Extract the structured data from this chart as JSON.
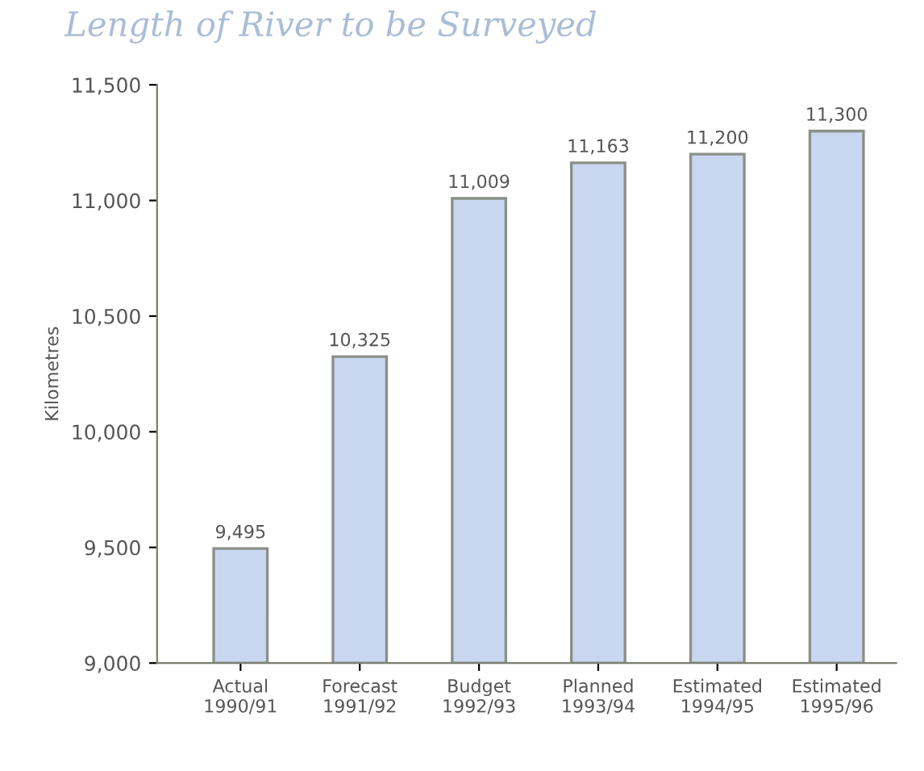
{
  "chart_data": {
    "type": "bar",
    "title": "Length of River to be Surveyed",
    "ylabel": "Kilometres",
    "categories": [
      "Actual\n1990/91",
      "Forecast\n1991/92",
      "Budget\n1992/93",
      "Planned\n1993/94",
      "Estimated\n1994/95",
      "Estimated\n1995/96"
    ],
    "values": [
      9495,
      10325,
      11009,
      11163,
      11200,
      11300
    ],
    "value_labels": [
      "9,495",
      "10,325",
      "11,009",
      "11,163",
      "11,200",
      "11,300"
    ],
    "color": "#c9d6f0",
    "ylim": [
      9000,
      11500
    ],
    "yticks": [
      {
        "value": 9000,
        "label": "9,000"
      },
      {
        "value": 9500,
        "label": "9,500"
      },
      {
        "value": 10000,
        "label": "10,000"
      },
      {
        "value": 10500,
        "label": "10,500"
      },
      {
        "value": 11000,
        "label": "11,000"
      },
      {
        "value": 11500,
        "label": "11,500"
      }
    ],
    "grid": false
  }
}
